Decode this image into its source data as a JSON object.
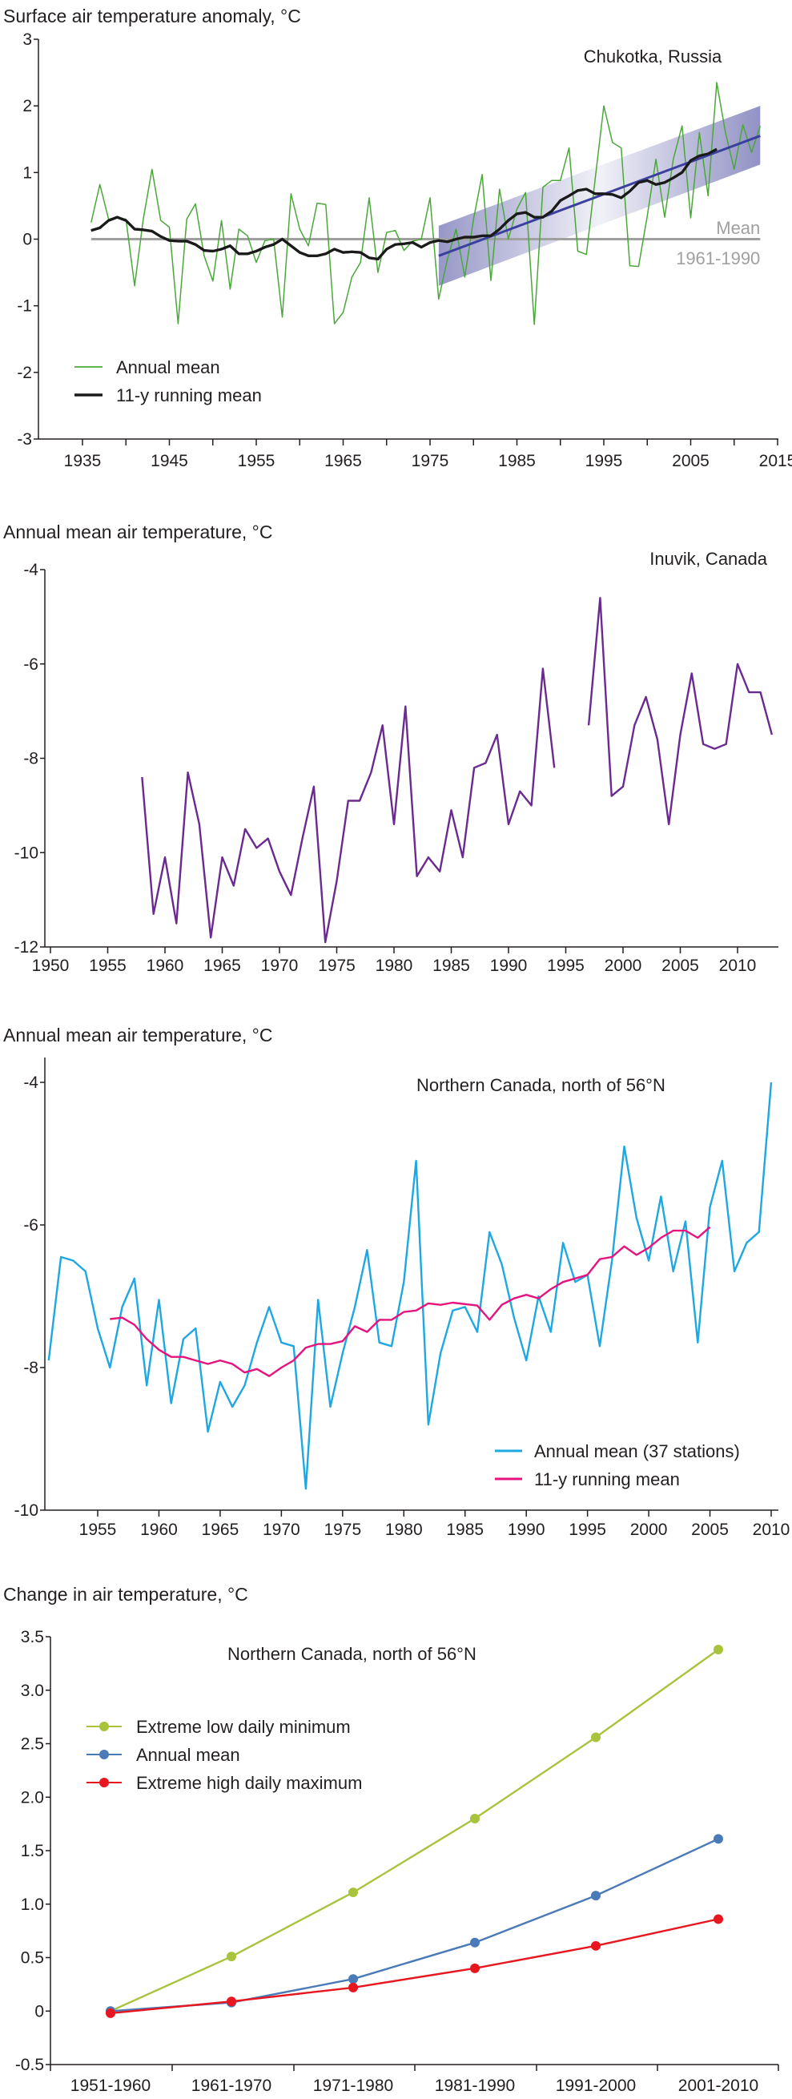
{
  "chart_data": [
    {
      "type": "line",
      "ylabel": "Surface air temperature anomaly, °C",
      "annotation": "Chukotka, Russia",
      "ylim": [
        -3,
        3
      ],
      "xlim": [
        1935,
        2015
      ],
      "x_ticks": [
        "1935",
        "1945",
        "1955",
        "1965",
        "1975",
        "1985",
        "1995",
        "2005",
        "2015"
      ],
      "y_ticks": [
        "3",
        "2",
        "1",
        "0",
        "-1",
        "-2",
        "-3"
      ],
      "mean_line": {
        "value": 0,
        "label": "Mean",
        "period": "1961-1990",
        "color": "#a0a0a0"
      },
      "trend": {
        "x": [
          1976,
          2013
        ],
        "y": [
          -0.25,
          1.55
        ],
        "band_low": [
          -0.7,
          1.12
        ],
        "band_high": [
          0.2,
          2.0
        ],
        "color": "#3b3f9e",
        "band_color": "#8c8cc2"
      },
      "legend": "bottom-left",
      "series": [
        {
          "name": "Annual mean",
          "color": "#4aa838",
          "x_start": 1936,
          "values": [
            0.25,
            0.82,
            0.3,
            0.32,
            0.3,
            -0.7,
            0.3,
            1.05,
            0.28,
            0.18,
            -1.27,
            0.3,
            0.53,
            -0.25,
            -0.63,
            0.28,
            -0.75,
            0.15,
            0.05,
            -0.35,
            -0.02,
            0.0,
            -1.17,
            0.68,
            0.15,
            -0.1,
            0.54,
            0.52,
            -1.27,
            -1.1,
            -0.57,
            -0.35,
            0.62,
            -0.5,
            0.1,
            0.13,
            -0.17,
            -0.03,
            0.0,
            0.62,
            -0.9,
            -0.3,
            0.15,
            -0.57,
            0.3,
            0.97,
            -0.62,
            0.75,
            0.0,
            0.45,
            0.7,
            -1.28,
            0.78,
            0.88,
            0.88,
            1.37,
            -0.18,
            -0.23,
            0.9,
            2.0,
            1.45,
            1.37,
            -0.4,
            -0.41,
            0.35,
            1.2,
            0.33,
            1.2,
            1.7,
            0.32,
            1.6,
            0.65,
            2.35,
            1.6,
            1.05,
            1.72,
            1.3,
            1.7
          ]
        },
        {
          "name": "11-y running mean",
          "color": "#1a1a1a",
          "x_start": 1936,
          "values": [
            0.13,
            0.17,
            0.28,
            0.33,
            0.28,
            0.15,
            0.14,
            0.12,
            0.04,
            -0.02,
            -0.03,
            -0.03,
            -0.08,
            -0.17,
            -0.18,
            -0.15,
            -0.1,
            -0.22,
            -0.22,
            -0.18,
            -0.12,
            -0.08,
            0.0,
            -0.1,
            -0.2,
            -0.25,
            -0.25,
            -0.22,
            -0.15,
            -0.2,
            -0.19,
            -0.2,
            -0.28,
            -0.3,
            -0.15,
            -0.08,
            -0.07,
            -0.05,
            -0.12,
            -0.05,
            -0.02,
            -0.04,
            0.0,
            0.03,
            0.03,
            0.05,
            0.05,
            0.15,
            0.28,
            0.38,
            0.4,
            0.33,
            0.33,
            0.42,
            0.58,
            0.65,
            0.73,
            0.75,
            0.68,
            0.68,
            0.67,
            0.62,
            0.72,
            0.85,
            0.88,
            0.82,
            0.85,
            0.92,
            1.0,
            1.18,
            1.25,
            1.28,
            1.35
          ]
        }
      ]
    },
    {
      "type": "line",
      "ylabel": "Annual mean air temperature, °C",
      "annotation": "Inuvik, Canada",
      "ylim": [
        -12,
        -4
      ],
      "xlim": [
        1950,
        2013
      ],
      "x_ticks": [
        "1950",
        "1955",
        "1960",
        "1965",
        "1970",
        "1975",
        "1980",
        "1985",
        "1990",
        "1995",
        "2000",
        "2005",
        "2010"
      ],
      "y_ticks": [
        "-4",
        "-6",
        "-8",
        "-10",
        "-12"
      ],
      "series": [
        {
          "color": "#6a2a90",
          "x_start": 1958,
          "values": [
            -8.4,
            -11.3,
            -10.1,
            -11.5,
            -8.3,
            -9.4,
            -11.8,
            -10.1,
            -10.7,
            -9.5,
            -9.9,
            -9.7,
            -10.4,
            -10.9,
            -9.7,
            -8.6,
            -11.9,
            -10.6,
            -8.9,
            -8.9,
            -8.3,
            -7.3,
            -9.4,
            -6.9,
            -10.5,
            -10.1,
            -10.4,
            -9.1,
            -10.1,
            -8.2,
            -8.1,
            -7.5,
            -9.4,
            -8.7,
            -9.0,
            -6.1,
            -8.2,
            null,
            null,
            -7.3,
            -4.6,
            -8.8,
            -8.6,
            -7.3,
            -6.7,
            -7.6,
            -9.4,
            -7.5,
            -6.2,
            -7.7,
            -7.8,
            -7.7,
            -6.0,
            -6.6,
            -6.6,
            -7.5
          ]
        }
      ]
    },
    {
      "type": "line",
      "ylabel": "Annual mean air temperature, °C",
      "annotation": "Northern Canada, north of 56°N",
      "ylim": [
        -10,
        -4
      ],
      "xlim": [
        1951,
        2010
      ],
      "x_ticks": [
        "1955",
        "1960",
        "1965",
        "1970",
        "1975",
        "1980",
        "1985",
        "1990",
        "1995",
        "2000",
        "2005",
        "2010"
      ],
      "y_ticks": [
        "-4",
        "-6",
        "-8",
        "-10"
      ],
      "legend": "bottom-right",
      "series": [
        {
          "name": "Annual mean (37 stations)",
          "color": "#1ea7e1",
          "x_start": 1951,
          "values": [
            -7.9,
            -6.45,
            -6.5,
            -6.65,
            -7.45,
            -8.0,
            -7.15,
            -6.75,
            -8.25,
            -7.05,
            -8.5,
            -7.6,
            -7.45,
            -8.9,
            -8.2,
            -8.55,
            -8.25,
            -7.65,
            -7.15,
            -7.65,
            -7.7,
            -9.7,
            -7.05,
            -8.55,
            -7.8,
            -7.15,
            -6.35,
            -7.65,
            -7.7,
            -6.8,
            -5.1,
            -8.8,
            -7.8,
            -7.2,
            -7.15,
            -7.5,
            -6.1,
            -6.55,
            -7.3,
            -7.9,
            -7.0,
            -7.5,
            -6.25,
            -6.8,
            -6.7,
            -7.7,
            -6.5,
            -4.9,
            -5.9,
            -6.5,
            -5.6,
            -6.65,
            -5.95,
            -7.65,
            -5.75,
            -5.1,
            -6.65,
            -6.25,
            -6.1,
            -4.0
          ]
        },
        {
          "name": "11-y running mean",
          "color": "#e6137e",
          "x_start": 1956,
          "values": [
            -7.32,
            -7.3,
            -7.4,
            -7.6,
            -7.75,
            -7.85,
            -7.85,
            -7.9,
            -7.95,
            -7.9,
            -7.95,
            -8.07,
            -8.02,
            -8.12,
            -8.0,
            -7.9,
            -7.72,
            -7.67,
            -7.67,
            -7.63,
            -7.42,
            -7.5,
            -7.33,
            -7.33,
            -7.22,
            -7.2,
            -7.1,
            -7.12,
            -7.09,
            -7.11,
            -7.13,
            -7.33,
            -7.12,
            -7.03,
            -6.98,
            -7.03,
            -6.9,
            -6.8,
            -6.75,
            -6.7,
            -6.48,
            -6.45,
            -6.3,
            -6.42,
            -6.32,
            -6.18,
            -6.08,
            -6.08,
            -6.18,
            -6.03
          ]
        }
      ]
    },
    {
      "type": "line",
      "ylabel": "Change in air temperature, °C",
      "annotation": "Northern Canada, north of 56°N",
      "ylim": [
        -0.5,
        3.5
      ],
      "categories": [
        "1951-1960",
        "1961-1970",
        "1971-1980",
        "1981-1990",
        "1991-2000",
        "2001-2010"
      ],
      "y_ticks": [
        "3.5",
        "3.0",
        "2.5",
        "2.0",
        "1.5",
        "1.0",
        "0.5",
        "0",
        "-0.5"
      ],
      "legend": "top-left",
      "series": [
        {
          "name": "Extreme low daily minimum",
          "color": "#a8c43c",
          "values": [
            0,
            0.51,
            1.11,
            1.8,
            2.56,
            3.38
          ]
        },
        {
          "name": "Annual mean",
          "color": "#4a7ab8",
          "values": [
            0,
            0.08,
            0.3,
            0.64,
            1.08,
            1.61
          ]
        },
        {
          "name": "Extreme high daily maximum",
          "color": "#e8161f",
          "values": [
            -0.02,
            0.09,
            0.22,
            0.4,
            0.61,
            0.86
          ]
        }
      ]
    }
  ]
}
